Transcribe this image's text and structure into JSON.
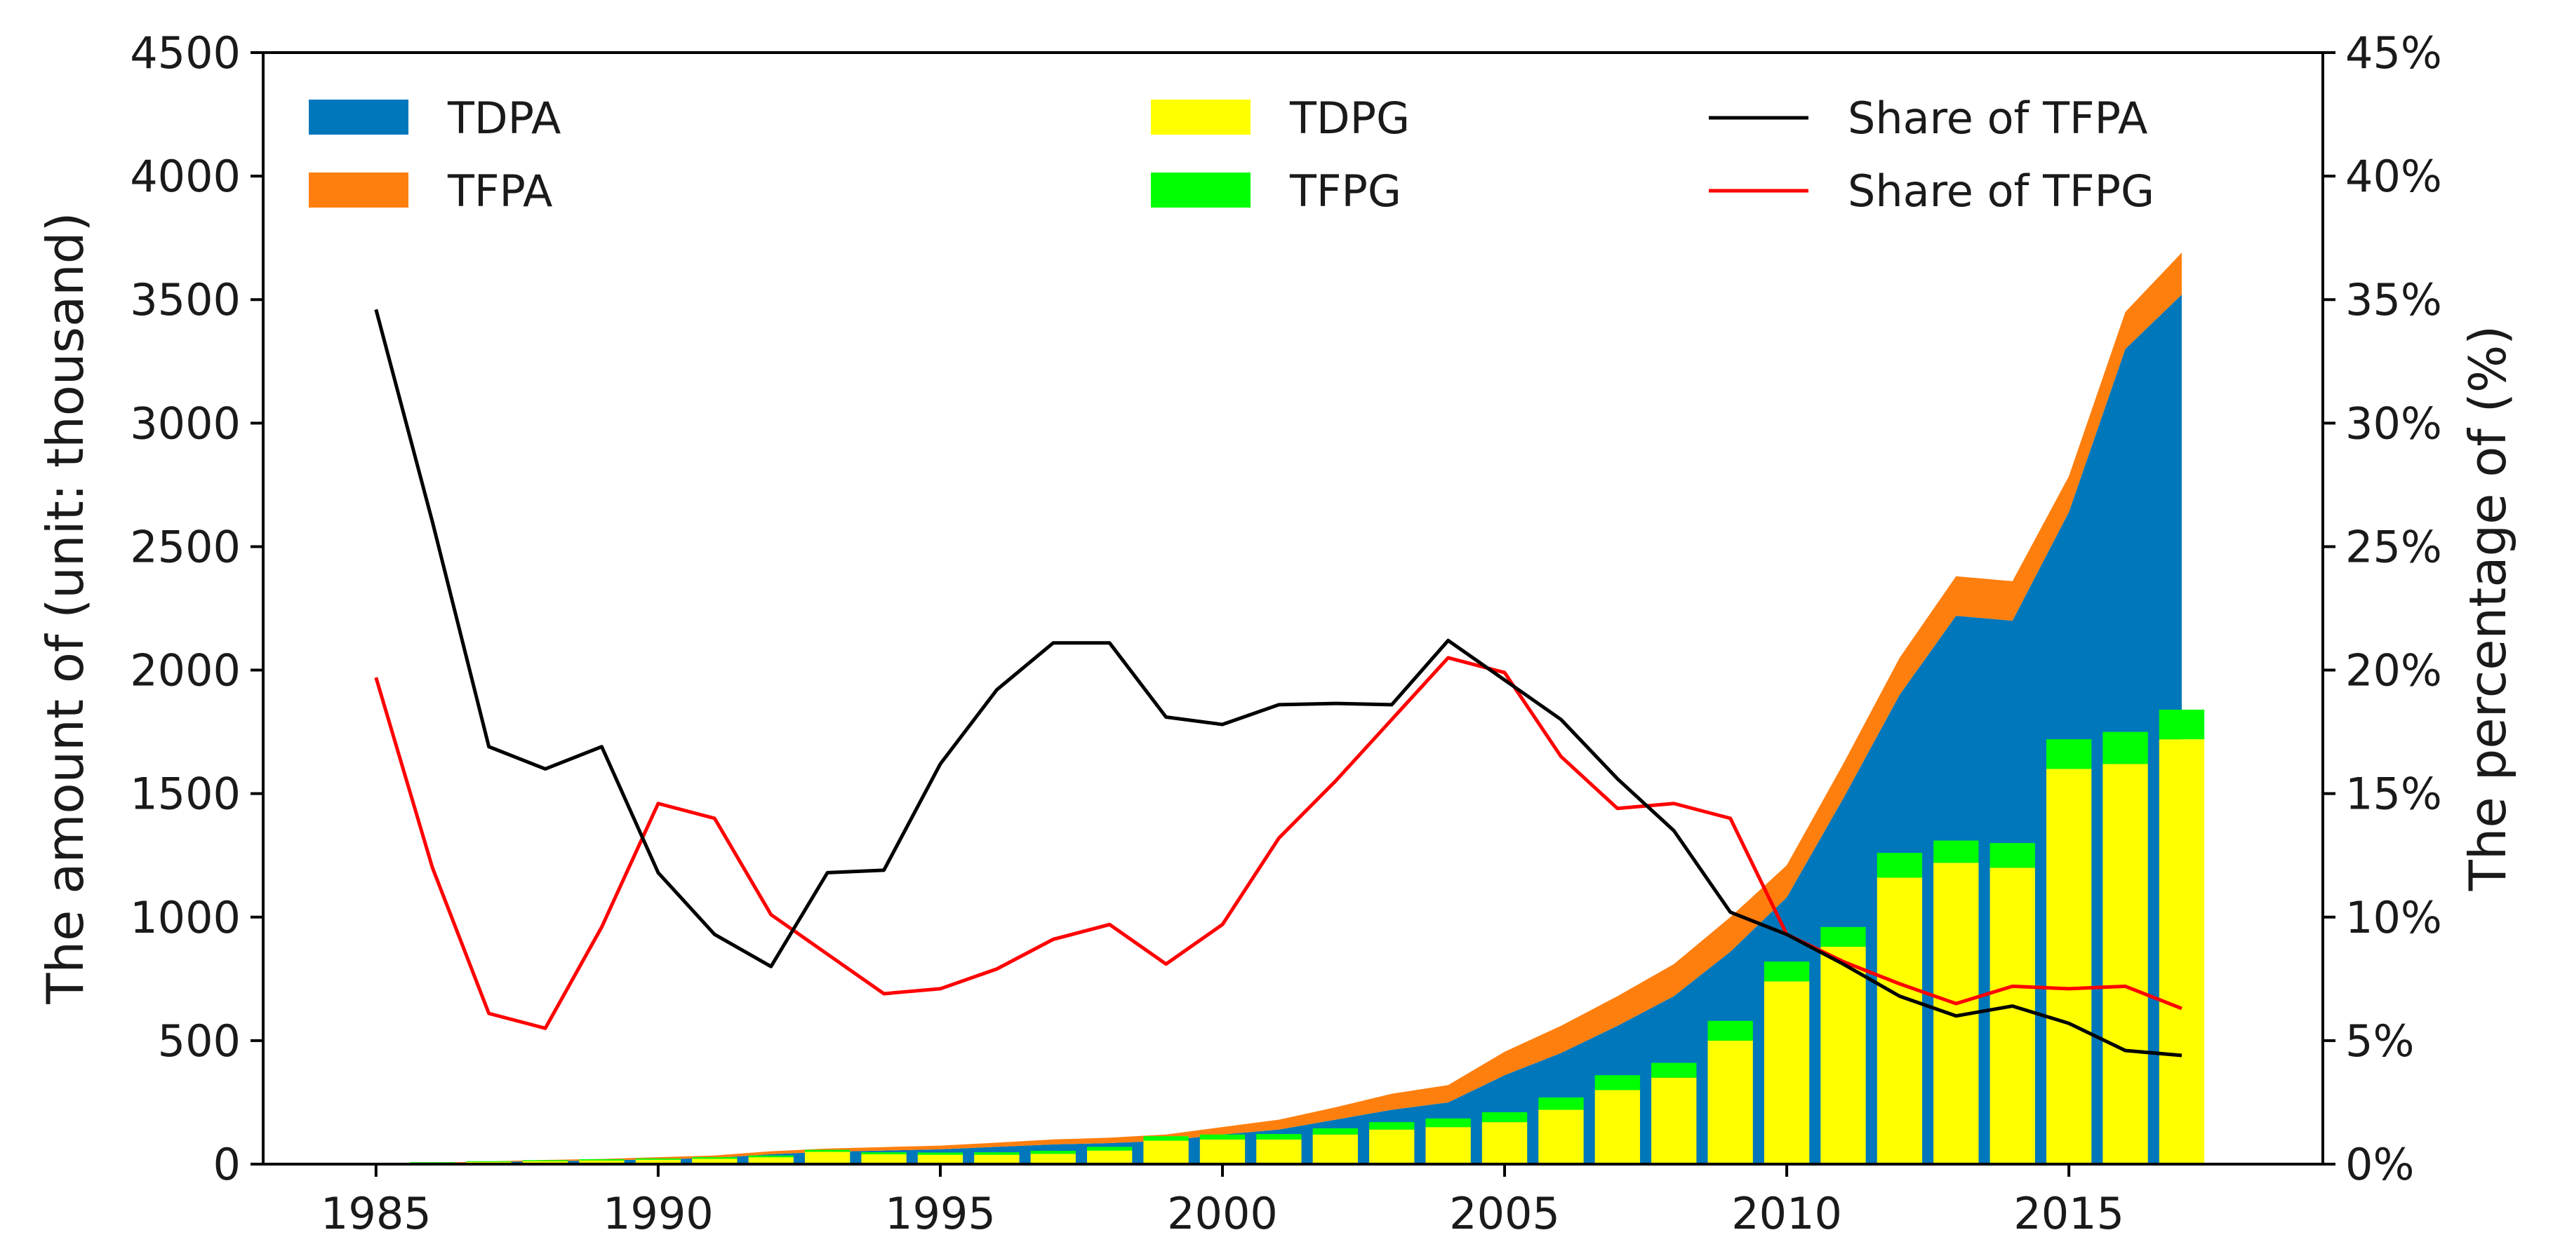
{
  "chart_data": {
    "type": "bar",
    "title": "",
    "xlabel": "",
    "ylabel": "The amount of (unit: thousand)",
    "y2label": "The percentage of (%)",
    "xlim": [
      1983,
      2019.5
    ],
    "ylim": [
      0,
      4500
    ],
    "y2lim": [
      0,
      45
    ],
    "x_ticks": [
      1985,
      1990,
      1995,
      2000,
      2005,
      2010,
      2015
    ],
    "x_tick_labels": [
      "1985",
      "1990",
      "1995",
      "2000",
      "2005",
      "2010",
      "2015"
    ],
    "y_ticks": [
      0,
      500,
      1000,
      1500,
      2000,
      2500,
      3000,
      3500,
      4000,
      4500
    ],
    "y_tick_labels": [
      "0",
      "500",
      "1000",
      "1500",
      "2000",
      "2500",
      "3000",
      "3500",
      "4000",
      "4500"
    ],
    "y2_ticks": [
      0,
      5,
      10,
      15,
      20,
      25,
      30,
      35,
      40,
      45
    ],
    "y2_tick_labels": [
      "0%",
      "5%",
      "10%",
      "15%",
      "20%",
      "25%",
      "30%",
      "35%",
      "40%",
      "45%"
    ],
    "years": [
      1985,
      1986,
      1987,
      1988,
      1989,
      1990,
      1991,
      1992,
      1993,
      1994,
      1995,
      1996,
      1997,
      1998,
      1999,
      2000,
      2001,
      2002,
      2003,
      2004,
      2005,
      2006,
      2007,
      2008,
      2009,
      2010,
      2011,
      2012,
      2013,
      2014,
      2015,
      2016,
      2017
    ],
    "series": [
      {
        "name": "TDPA",
        "kind": "stacked-area",
        "color": "#0077bb",
        "values": [
          2,
          4,
          8,
          12,
          15,
          20,
          25,
          40,
          50,
          55,
          60,
          70,
          80,
          85,
          95,
          120,
          140,
          180,
          220,
          250,
          360,
          450,
          560,
          680,
          860,
          1080,
          1480,
          1900,
          2220,
          2200,
          2640,
          3300,
          3520
        ]
      },
      {
        "name": "TFPA",
        "kind": "stacked-area",
        "color": "#ff7f0e",
        "values": [
          1,
          2,
          3,
          5,
          6,
          8,
          10,
          12,
          13,
          14,
          15,
          17,
          20,
          22,
          25,
          30,
          40,
          50,
          65,
          70,
          95,
          110,
          120,
          130,
          140,
          130,
          140,
          150,
          160,
          160,
          145,
          150,
          170
        ]
      },
      {
        "name": "TDPG",
        "kind": "stacked-bar",
        "color": "#ffff00",
        "values": [
          3,
          6,
          9,
          12,
          15,
          18,
          22,
          28,
          50,
          40,
          38,
          38,
          42,
          55,
          95,
          100,
          100,
          120,
          140,
          150,
          170,
          220,
          300,
          350,
          500,
          740,
          880,
          1160,
          1220,
          1200,
          1600,
          1620,
          1720
        ]
      },
      {
        "name": "TFPG",
        "kind": "stacked-bar",
        "color": "#00ff00",
        "values": [
          1,
          2,
          3,
          4,
          5,
          5,
          6,
          7,
          8,
          8,
          9,
          10,
          12,
          15,
          18,
          20,
          22,
          25,
          30,
          35,
          40,
          50,
          60,
          60,
          80,
          80,
          80,
          100,
          90,
          100,
          120,
          130,
          120
        ]
      },
      {
        "name": "Share of TFPA",
        "kind": "line",
        "axis": "right",
        "color": "#000000",
        "values": [
          34.6,
          26.0,
          16.9,
          16.0,
          16.9,
          11.8,
          9.3,
          8.0,
          11.8,
          11.9,
          16.2,
          19.2,
          21.1,
          21.1,
          18.1,
          17.8,
          18.6,
          18.65,
          18.6,
          21.2,
          19.6,
          18.0,
          15.6,
          13.5,
          10.2,
          9.3,
          8.1,
          6.8,
          6.0,
          6.4,
          5.7,
          4.6,
          4.4
        ]
      },
      {
        "name": "Share of TFPG",
        "kind": "line",
        "axis": "right",
        "color": "#ff0000",
        "values": [
          19.7,
          12.0,
          6.1,
          5.5,
          9.6,
          14.6,
          14.0,
          10.1,
          8.5,
          6.9,
          7.1,
          7.9,
          9.1,
          9.7,
          8.1,
          9.7,
          13.2,
          15.5,
          18.0,
          20.5,
          19.9,
          16.5,
          14.4,
          14.6,
          14.0,
          9.3,
          8.2,
          7.3,
          6.5,
          7.2,
          7.1,
          7.2,
          6.3
        ]
      }
    ],
    "legend": [
      {
        "label": "TDPA",
        "series": "TDPA",
        "kind": "patch"
      },
      {
        "label": "TFPA",
        "series": "TFPA",
        "kind": "patch"
      },
      {
        "label": "TDPG",
        "series": "TDPG",
        "kind": "patch"
      },
      {
        "label": "TFPG",
        "series": "TFPG",
        "kind": "patch"
      },
      {
        "label": "Share of  TFPA",
        "series": "Share of TFPA",
        "kind": "line"
      },
      {
        "label": "Share of  TFPG",
        "series": "Share of TFPG",
        "kind": "line"
      }
    ],
    "legend_position": "top, three columns",
    "grid": false
  }
}
